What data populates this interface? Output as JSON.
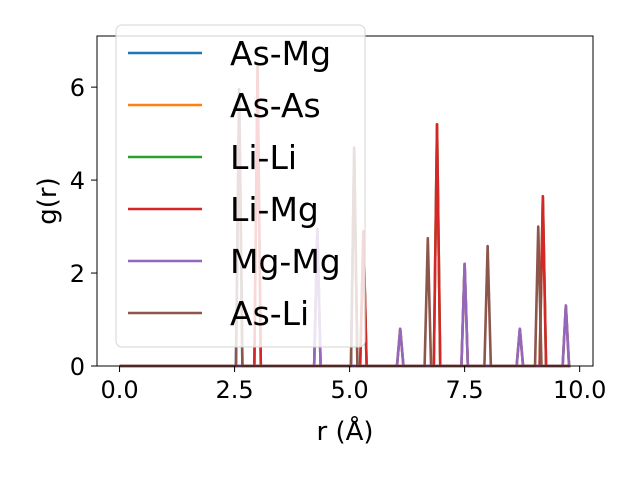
{
  "chart_data": {
    "type": "line",
    "title": "",
    "xlabel": "r (Å)",
    "ylabel": "g(r)",
    "xlim": [
      -0.49,
      10.29
    ],
    "ylim": [
      0,
      7.1
    ],
    "xticks": [
      0.0,
      2.5,
      5.0,
      7.5,
      10.0
    ],
    "xtick_labels": [
      "0.0",
      "2.5",
      "5.0",
      "7.5",
      "10.0"
    ],
    "yticks": [
      0,
      2,
      4,
      6
    ],
    "ytick_labels": [
      "0",
      "2",
      "4",
      "6"
    ],
    "grid": false,
    "legend": "top-left",
    "peak_half_width": 0.07,
    "x_range": [
      0.0,
      9.8
    ],
    "series": [
      {
        "name": "As-Mg",
        "color": "#1f77b4",
        "peaks": [
          [
            2.6,
            5.95
          ],
          [
            4.3,
            2.95
          ],
          [
            5.1,
            4.7
          ],
          [
            6.1,
            0.8
          ],
          [
            7.5,
            2.2
          ],
          [
            8.7,
            0.8
          ],
          [
            9.7,
            1.3
          ]
        ]
      },
      {
        "name": "As-As",
        "color": "#ff7f0e",
        "peaks": [
          [
            4.3,
            2.95
          ],
          [
            6.1,
            0.8
          ],
          [
            7.5,
            2.2
          ],
          [
            8.7,
            0.8
          ],
          [
            9.7,
            1.3
          ]
        ]
      },
      {
        "name": "Li-Li",
        "color": "#2ca02c",
        "peaks": [
          [
            3.0,
            6.5
          ],
          [
            5.3,
            2.9
          ],
          [
            6.9,
            5.2
          ],
          [
            9.2,
            3.65
          ]
        ]
      },
      {
        "name": "Li-Mg",
        "color": "#d62728",
        "peaks": [
          [
            3.0,
            6.5
          ],
          [
            5.3,
            2.9
          ],
          [
            6.9,
            5.2
          ],
          [
            9.2,
            3.65
          ]
        ]
      },
      {
        "name": "Mg-Mg",
        "color": "#9467bd",
        "peaks": [
          [
            4.3,
            2.95
          ],
          [
            6.1,
            0.8
          ],
          [
            7.5,
            2.2
          ],
          [
            8.7,
            0.8
          ],
          [
            9.7,
            1.3
          ]
        ]
      },
      {
        "name": "As-Li",
        "color": "#8c564b",
        "peaks": [
          [
            2.6,
            5.95
          ],
          [
            5.1,
            4.7
          ],
          [
            6.7,
            2.75
          ],
          [
            8.0,
            2.58
          ],
          [
            9.1,
            3.0
          ]
        ]
      }
    ]
  }
}
